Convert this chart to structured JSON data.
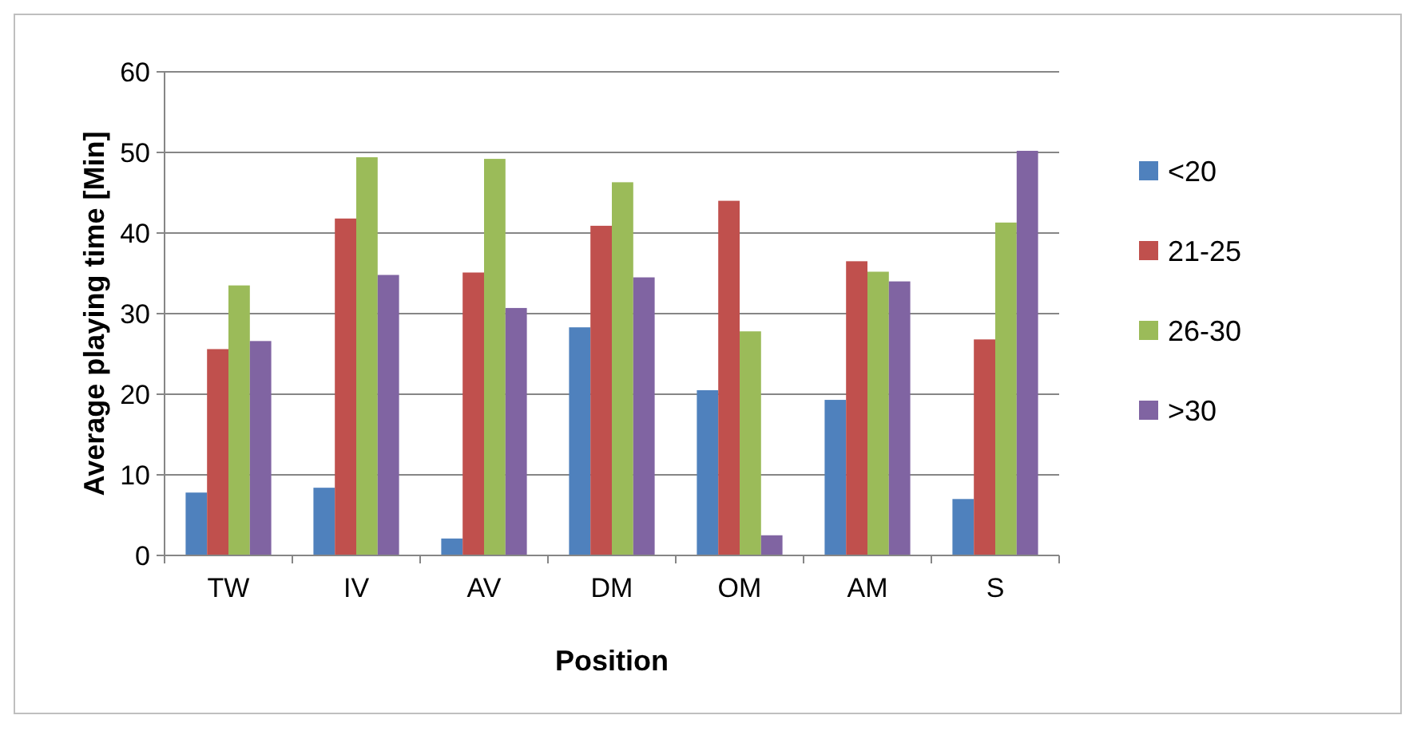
{
  "chart_data": {
    "type": "bar",
    "xlabel": "Position",
    "ylabel": "Average playing time [Min]",
    "categories": [
      "TW",
      "IV",
      "AV",
      "DM",
      "OM",
      "AM",
      "S"
    ],
    "series": [
      {
        "name": "<20",
        "color": "#4f81bd",
        "values": [
          7.8,
          8.4,
          2.1,
          28.3,
          20.5,
          19.3,
          7.0
        ]
      },
      {
        "name": "21-25",
        "color": "#c0504d",
        "values": [
          25.6,
          41.8,
          35.1,
          40.9,
          44.0,
          36.5,
          26.8
        ]
      },
      {
        "name": "26-30",
        "color": "#9bbb59",
        "values": [
          33.5,
          49.4,
          49.2,
          46.3,
          27.8,
          35.2,
          41.3
        ]
      },
      {
        "name": ">30",
        "color": "#8064a2",
        "values": [
          26.6,
          34.8,
          30.7,
          34.5,
          2.5,
          34.0,
          50.2
        ]
      }
    ],
    "ylim": [
      0,
      60
    ],
    "yticks": [
      0,
      10,
      20,
      30,
      40,
      50,
      60
    ],
    "grid": "y",
    "legend": "right"
  }
}
